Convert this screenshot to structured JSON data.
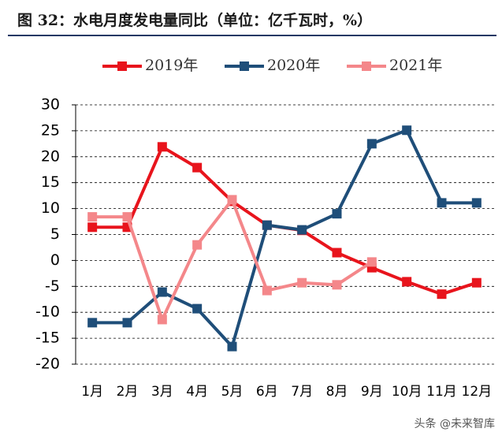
{
  "chart_data": {
    "type": "line",
    "title": "图 32：水电月度发电量同比（单位：亿千瓦时，%）",
    "categories": [
      "1月",
      "2月",
      "3月",
      "4月",
      "5月",
      "6月",
      "7月",
      "8月",
      "9月",
      "10月",
      "11月",
      "12月"
    ],
    "series": [
      {
        "name": "2019年",
        "color": "#e8141c",
        "values": [
          6.4,
          6.4,
          21.9,
          17.9,
          11.4,
          6.8,
          5.8,
          1.5,
          -1.4,
          -4.1,
          -6.5,
          -4.3
        ]
      },
      {
        "name": "2020年",
        "color": "#1f4e79",
        "values": [
          -12,
          -12,
          -6.1,
          -9.3,
          -16.6,
          6.8,
          5.9,
          9.0,
          22.5,
          25.1,
          11.1,
          11.1
        ]
      },
      {
        "name": "2021年",
        "color": "#f4878a",
        "values": [
          8.4,
          8.4,
          -11.4,
          3.0,
          11.7,
          -5.8,
          -4.3,
          -4.7,
          -0.3,
          null,
          null,
          null
        ]
      }
    ],
    "ylim": [
      -20,
      30
    ],
    "yticks": [
      -20,
      -15,
      -10,
      -5,
      0,
      5,
      10,
      15,
      20,
      25,
      30
    ],
    "grid": true,
    "legend": "top",
    "watermark": "头条 @未来智库"
  }
}
